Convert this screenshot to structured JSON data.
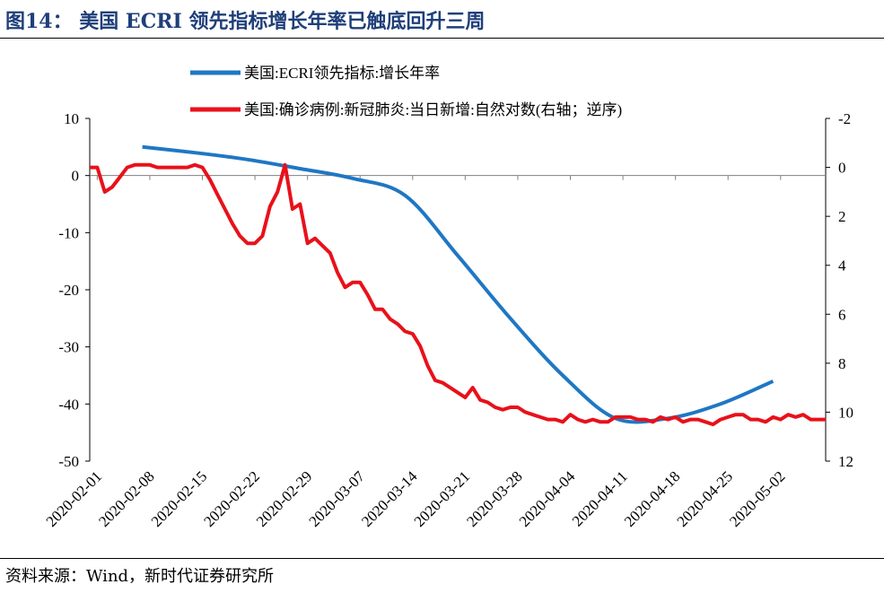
{
  "header": {
    "title": "图14：  美国 ECRI 领先指标增长年率已触底回升三周"
  },
  "footer": {
    "source": "资料来源：Wind，新时代证券研究所"
  },
  "chart_data": {
    "type": "line",
    "x_dates": [
      "2020-01-31",
      "2020-02-01",
      "2020-02-02",
      "2020-02-03",
      "2020-02-04",
      "2020-02-05",
      "2020-02-06",
      "2020-02-07",
      "2020-02-08",
      "2020-02-09",
      "2020-02-10",
      "2020-02-11",
      "2020-02-12",
      "2020-02-13",
      "2020-02-14",
      "2020-02-15",
      "2020-02-16",
      "2020-02-17",
      "2020-02-18",
      "2020-02-19",
      "2020-02-20",
      "2020-02-21",
      "2020-02-22",
      "2020-02-23",
      "2020-02-24",
      "2020-02-25",
      "2020-02-26",
      "2020-02-27",
      "2020-02-28",
      "2020-02-29",
      "2020-03-01",
      "2020-03-02",
      "2020-03-03",
      "2020-03-04",
      "2020-03-05",
      "2020-03-06",
      "2020-03-07",
      "2020-03-08",
      "2020-03-09",
      "2020-03-10",
      "2020-03-11",
      "2020-03-12",
      "2020-03-13",
      "2020-03-14",
      "2020-03-15",
      "2020-03-16",
      "2020-03-17",
      "2020-03-18",
      "2020-03-19",
      "2020-03-20",
      "2020-03-21",
      "2020-03-22",
      "2020-03-23",
      "2020-03-24",
      "2020-03-25",
      "2020-03-26",
      "2020-03-27",
      "2020-03-28",
      "2020-03-29",
      "2020-03-30",
      "2020-03-31",
      "2020-04-01",
      "2020-04-02",
      "2020-04-03",
      "2020-04-04",
      "2020-04-05",
      "2020-04-06",
      "2020-04-07",
      "2020-04-08",
      "2020-04-09",
      "2020-04-10",
      "2020-04-11",
      "2020-04-12",
      "2020-04-13",
      "2020-04-14",
      "2020-04-15",
      "2020-04-16",
      "2020-04-17",
      "2020-04-18",
      "2020-04-19",
      "2020-04-20",
      "2020-04-21",
      "2020-04-22",
      "2020-04-23",
      "2020-04-24",
      "2020-04-25",
      "2020-04-26",
      "2020-04-27",
      "2020-04-28",
      "2020-04-29",
      "2020-04-30",
      "2020-05-01",
      "2020-05-02",
      "2020-05-03",
      "2020-05-04",
      "2020-05-05",
      "2020-05-06",
      "2020-05-07",
      "2020-05-08"
    ],
    "x_tick_labels": [
      "2020-02-01",
      "2020-02-08",
      "2020-02-15",
      "2020-02-22",
      "2020-02-29",
      "2020-03-07",
      "2020-03-14",
      "2020-03-21",
      "2020-03-28",
      "2020-04-04",
      "2020-04-11",
      "2020-04-18",
      "2020-04-25",
      "2020-05-02"
    ],
    "left_axis": {
      "ylim": [
        -50,
        10
      ],
      "ticks": [
        "10",
        "0",
        "-10",
        "-20",
        "-30",
        "-40",
        "-50"
      ]
    },
    "right_axis": {
      "ylim": [
        -2,
        12
      ],
      "reversed": true,
      "ticks": [
        "-2",
        "0",
        "2",
        "4",
        "6",
        "8",
        "10",
        "12"
      ]
    },
    "series": [
      {
        "name": "美国:ECRI领先指标:增长年率",
        "axis": "left",
        "color": "#1f77c4",
        "points": [
          [
            "2020-02-07",
            5.0
          ],
          [
            "2020-02-14",
            4.0
          ],
          [
            "2020-02-21",
            2.8
          ],
          [
            "2020-02-28",
            1.2
          ],
          [
            "2020-03-06",
            -0.5
          ],
          [
            "2020-03-13",
            -3.5
          ],
          [
            "2020-03-20",
            -14.0
          ],
          [
            "2020-03-27",
            -25.0
          ],
          [
            "2020-04-03",
            -35.0
          ],
          [
            "2020-04-10",
            -42.5
          ],
          [
            "2020-04-17",
            -42.5
          ],
          [
            "2020-04-24",
            -40.0
          ],
          [
            "2020-05-01",
            -36.0
          ]
        ]
      },
      {
        "name": "美国:确诊病例:新冠肺炎:当日新增:自然对数(右轴；逆序)",
        "axis": "right",
        "color": "#e8111a",
        "values": [
          0.0,
          0.0,
          1.0,
          0.8,
          0.4,
          0.0,
          -0.1,
          -0.1,
          -0.1,
          0.0,
          0.0,
          0.0,
          0.0,
          0.0,
          -0.1,
          0.0,
          0.5,
          1.1,
          1.7,
          2.3,
          2.8,
          3.1,
          3.1,
          2.8,
          1.6,
          1.0,
          -0.1,
          1.7,
          1.5,
          3.1,
          2.9,
          3.2,
          3.5,
          4.3,
          4.9,
          4.7,
          4.7,
          5.2,
          5.8,
          5.8,
          6.2,
          6.4,
          6.7,
          6.8,
          7.3,
          8.1,
          8.7,
          8.8,
          9.0,
          9.2,
          9.4,
          9.0,
          9.5,
          9.6,
          9.8,
          9.9,
          9.8,
          9.8,
          10.0,
          10.1,
          10.2,
          10.3,
          10.3,
          10.4,
          10.1,
          10.3,
          10.4,
          10.3,
          10.4,
          10.4,
          10.2,
          10.2,
          10.2,
          10.3,
          10.3,
          10.4,
          10.2,
          10.3,
          10.2,
          10.4,
          10.3,
          10.3,
          10.4,
          10.5,
          10.3,
          10.2,
          10.1,
          10.1,
          10.3,
          10.3,
          10.4,
          10.2,
          10.3,
          10.1,
          10.2,
          10.1,
          10.3,
          10.3,
          10.3
        ]
      }
    ]
  }
}
